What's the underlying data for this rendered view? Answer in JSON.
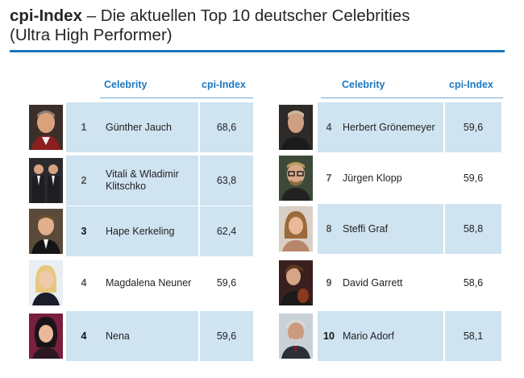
{
  "title": {
    "bold": "cpi-Index",
    "rest": " – Die aktuellen Top 10 deutscher Celebrities",
    "line2": "(Ultra High Performer)"
  },
  "headers": {
    "celebrity": "Celebrity",
    "cpi": "cpi-Index"
  },
  "left": [
    {
      "rank": "1",
      "name": "Günther Jauch",
      "score": "68,6",
      "rank_bold": false,
      "photo": "man-tv-host-icon"
    },
    {
      "rank": "2",
      "name": "Vitali & Wladimir Klitschko",
      "score": "63,8",
      "rank_bold": false,
      "photo": "two-men-suits-icon"
    },
    {
      "rank": "3",
      "name": "Hape Kerkeling",
      "score": "62,4",
      "rank_bold": true,
      "photo": "man-bowtie-icon"
    },
    {
      "rank": "4",
      "name": "Magdalena Neuner",
      "score": "59,6",
      "rank_bold": false,
      "photo": "blonde-woman-icon"
    },
    {
      "rank": "4",
      "name": "Nena",
      "score": "59,6",
      "rank_bold": true,
      "photo": "dark-hair-woman-icon"
    }
  ],
  "right": [
    {
      "rank": "4",
      "name": "Herbert Grönemeyer",
      "score": "59,6",
      "photo": "man-dark-icon"
    },
    {
      "rank": "7",
      "name": "Jürgen Klopp",
      "score": "59,6",
      "photo": "man-glasses-icon"
    },
    {
      "rank": "8",
      "name": "Steffi Graf",
      "score": "58,8",
      "photo": "woman-long-hair-icon"
    },
    {
      "rank": "9",
      "name": "David Garrett",
      "score": "58,6",
      "photo": "man-violin-icon"
    },
    {
      "rank": "10",
      "name": "Mario Adorf",
      "score": "58,1",
      "photo": "man-gray-hair-icon"
    }
  ],
  "colors": {
    "accent": "#1a75b8",
    "header_text": "#1f78c1",
    "row_fill": "#cfe3f1"
  }
}
